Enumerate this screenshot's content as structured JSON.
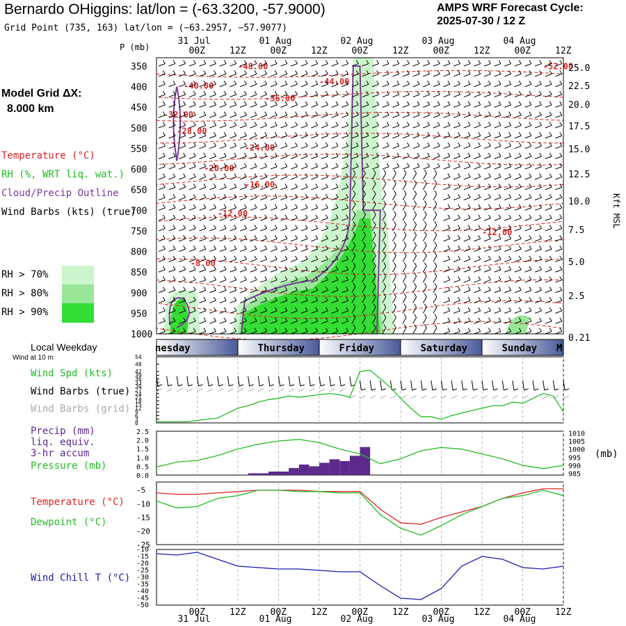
{
  "header": {
    "title": "Bernardo OHiggins:  lat/lon = (-63.3200, -57.9000)",
    "grid_point": "Grid Point (735, 163) lat/lon = (−63.2957, −57.9077)",
    "cycle_line1": "AMPS WRF Forecast Cycle:",
    "cycle_line2": "2025-07-30 / 12  Z",
    "pressure_unit": "P (mb)",
    "model_grid_line1": "Model Grid ΔX:",
    "model_grid_line2": "8.000 km"
  },
  "legend": {
    "temperature": "Temperature (°C)",
    "rh": "RH (%, WRT liq. wat.)",
    "cloud": "Cloud/Precip Outline",
    "wind": "Wind Barbs (kts) (true)",
    "rh70": "RH > 70%",
    "rh80": "RH > 80%",
    "rh90": "RH > 90%"
  },
  "colors": {
    "temp": "#dd2222",
    "rh70": "#ccf5cc",
    "rh80": "#99e699",
    "rh90": "#33dd33",
    "cloud": "#7a3a9a",
    "precip": "#5c2a8c",
    "wind_speed": "#22bb22",
    "dewpoint": "#22bb22",
    "temperature_line": "#dd2222",
    "wind_chill": "#1a1aaa",
    "pressure": "#22bb22",
    "grid_barbs": "#aaaaaa",
    "day_band": "#4a5a9a"
  },
  "time_axis": {
    "top_dates": [
      "31 Jul",
      "01 Aug",
      "02 Aug",
      "03 Aug",
      "04 Aug"
    ],
    "hour_labels": [
      "00Z",
      "12Z",
      "00Z",
      "12Z",
      "00Z",
      "12Z",
      "00Z",
      "12Z",
      "00Z",
      "12Z"
    ],
    "weekdays": [
      "nesday",
      "Thursday",
      "Friday",
      "Saturday",
      "Sunday",
      "M"
    ],
    "local_weekday_label": "Local Weekday",
    "wind_at_10m": "Wind at 10 m"
  },
  "chart_data": [
    {
      "type": "contour",
      "name": "cross-section",
      "x_hours": [
        -12,
        108
      ],
      "pressure_levels": [
        350,
        400,
        450,
        500,
        550,
        600,
        650,
        700,
        750,
        800,
        850,
        900,
        950,
        1000
      ],
      "height_kft_ticks": [
        "25.0",
        "22.5",
        "20.0",
        "17.5",
        "15.0",
        "12.5",
        "10.0",
        "7.5",
        "5.0",
        "2.5",
        "0.21"
      ],
      "height_axis_label": "Kft MSL",
      "temperature_contour_labels": [
        {
          "text": "-48.00",
          "hour": 12,
          "p": 358
        },
        {
          "text": "-52.00",
          "hour": 102,
          "p": 358
        },
        {
          "text": "-44.00",
          "hour": 36,
          "p": 395
        },
        {
          "text": "-40.00",
          "hour": -4,
          "p": 405
        },
        {
          "text": "-36.00",
          "hour": 20,
          "p": 435
        },
        {
          "text": "-32.00",
          "hour": -10,
          "p": 475
        },
        {
          "text": "-28.00",
          "hour": -6,
          "p": 515
        },
        {
          "text": "-24.00",
          "hour": 14,
          "p": 555
        },
        {
          "text": "-20.00",
          "hour": 2,
          "p": 605
        },
        {
          "text": "-16.00",
          "hour": 14,
          "p": 645
        },
        {
          "text": "-12.00",
          "hour": 6,
          "p": 715
        },
        {
          "text": "-12.00",
          "hour": 84,
          "p": 760
        },
        {
          "text": "-8.00",
          "hour": -2,
          "p": 835
        }
      ]
    },
    {
      "type": "line",
      "name": "wind",
      "label_speed": "Wind Spd (kts)",
      "label_barbs_true": "Wind Barbs (true)",
      "label_barbs_grid": "Wind Barbs (grid)",
      "y_ticks": [
        54,
        48,
        42,
        39,
        36,
        33,
        30,
        27,
        24,
        21,
        18,
        15,
        12,
        9,
        6,
        3,
        0
      ],
      "ylim": [
        0,
        54
      ],
      "x": [
        -12,
        -9,
        -6,
        -3,
        0,
        3,
        6,
        9,
        12,
        15,
        18,
        21,
        24,
        27,
        30,
        33,
        36,
        39,
        42,
        45,
        48,
        51,
        54,
        57,
        60,
        63,
        66,
        69,
        72,
        75,
        78,
        81,
        84,
        87,
        90,
        93,
        96,
        99,
        102,
        105,
        108
      ],
      "values": [
        1,
        1,
        1,
        1,
        2,
        3,
        4,
        8,
        12,
        14,
        17,
        19,
        20,
        22,
        21,
        22,
        23,
        24,
        23,
        21,
        42,
        43,
        36,
        29,
        20,
        12,
        5,
        5,
        3,
        6,
        8,
        10,
        12,
        14,
        14,
        17,
        16,
        20,
        24,
        22,
        9
      ]
    },
    {
      "type": "bar+line",
      "name": "precip-pressure",
      "label_precip": "Precip (mm)",
      "label_liq": "liq. equiv.",
      "label_accum": "3-hr accum",
      "label_pressure": "Pressure (mb)",
      "pressure_unit": "(mb)",
      "precip_ticks": [
        "2.5",
        "2.0",
        "1.5",
        "1.0",
        "0.5",
        "0.0"
      ],
      "pressure_ticks": [
        1010,
        1005,
        1000,
        995,
        990,
        985
      ],
      "precip_ylim": [
        0,
        2.5
      ],
      "pressure_ylim": [
        984,
        1011
      ],
      "precip_x": [
        18,
        21,
        24,
        27,
        30,
        33,
        36,
        39,
        42,
        45,
        48,
        51
      ],
      "precip_values": [
        0.1,
        0.1,
        0.2,
        0.2,
        0.4,
        0.6,
        0.5,
        0.7,
        0.9,
        0.8,
        1.1,
        1.6
      ],
      "pressure_x": [
        -12,
        -6,
        0,
        6,
        12,
        18,
        24,
        30,
        36,
        42,
        48,
        54,
        60,
        66,
        72,
        78,
        84,
        90,
        96,
        102,
        108
      ],
      "pressure_values": [
        989,
        992,
        993,
        996,
        1000,
        1003,
        1005,
        1006,
        1004,
        1000,
        997,
        991,
        994,
        999,
        1001,
        1000,
        997,
        994,
        990,
        988,
        990
      ]
    },
    {
      "type": "line",
      "name": "temperature-dewpoint",
      "label_temp": "Temperature (°C)",
      "label_dew": "Dewpoint (°C)",
      "y_ticks": [
        -5,
        -10,
        -15,
        -20,
        -25
      ],
      "ylim": [
        -25,
        -2
      ],
      "x": [
        -12,
        -6,
        0,
        6,
        12,
        18,
        24,
        30,
        36,
        42,
        48,
        54,
        60,
        66,
        72,
        78,
        84,
        90,
        96,
        102,
        108
      ],
      "temperature": [
        -6,
        -6.5,
        -6.5,
        -6,
        -5.5,
        -5,
        -5,
        -5,
        -5.5,
        -5.5,
        -5.5,
        -12,
        -17,
        -17.5,
        -15,
        -13,
        -11,
        -8,
        -6,
        -4.5,
        -4.5
      ],
      "dewpoint": [
        -9,
        -11.5,
        -11,
        -8,
        -7,
        -5,
        -5,
        -5.5,
        -5.5,
        -6,
        -6,
        -14,
        -19,
        -21.5,
        -18,
        -14,
        -11,
        -8,
        -7,
        -5,
        -7
      ]
    },
    {
      "type": "line",
      "name": "wind-chill",
      "label": "Wind Chill T (°C)",
      "y_ticks": [
        -10,
        -15,
        -20,
        -25,
        -30,
        -35,
        -40,
        -45,
        -50
      ],
      "ylim": [
        -50,
        -10
      ],
      "x": [
        -12,
        -6,
        0,
        6,
        12,
        18,
        24,
        30,
        36,
        42,
        48,
        54,
        60,
        66,
        72,
        78,
        84,
        90,
        96,
        102,
        108
      ],
      "values": [
        -13,
        -14,
        -12,
        -17,
        -22,
        -23,
        -24,
        -24,
        -25,
        -26,
        -26,
        -36,
        -45,
        -46,
        -38,
        -22,
        -15,
        -17,
        -23,
        -24,
        -22
      ]
    }
  ]
}
